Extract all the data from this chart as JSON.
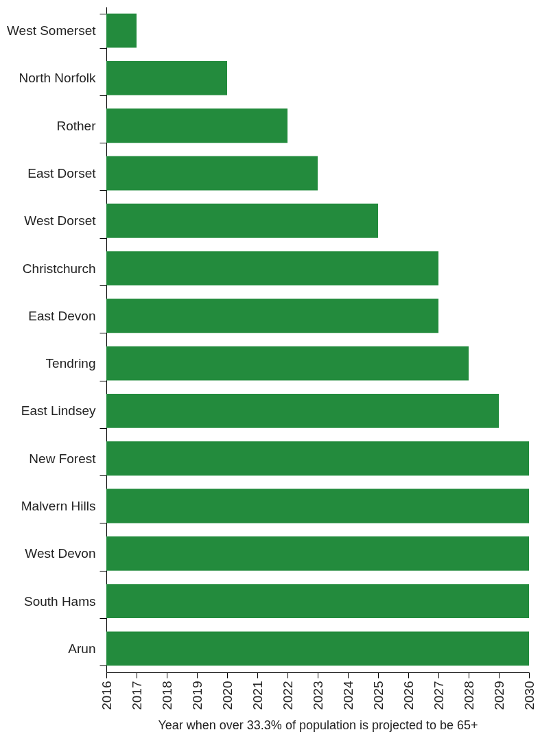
{
  "chart_data": {
    "type": "bar",
    "orientation": "horizontal",
    "categories": [
      "West Somerset",
      "North Norfolk",
      "Rother",
      "East Dorset",
      "West Dorset",
      "Christchurch",
      "East Devon",
      "Tendring",
      "East Lindsey",
      "New Forest",
      "Malvern Hills",
      "West Devon",
      "South Hams",
      "Arun"
    ],
    "values": [
      2017,
      2020,
      2022,
      2023,
      2025,
      2027,
      2027,
      2028,
      2029,
      2030,
      2030,
      2030,
      2030,
      2030
    ],
    "color": "#238b3d",
    "xlim": [
      2016,
      2030
    ],
    "xticks": [
      2016,
      2017,
      2018,
      2019,
      2020,
      2021,
      2022,
      2023,
      2024,
      2025,
      2026,
      2027,
      2028,
      2029,
      2030
    ],
    "xlabel": "Year when over 33.3% of population is projected to be 65+",
    "grid": false
  }
}
